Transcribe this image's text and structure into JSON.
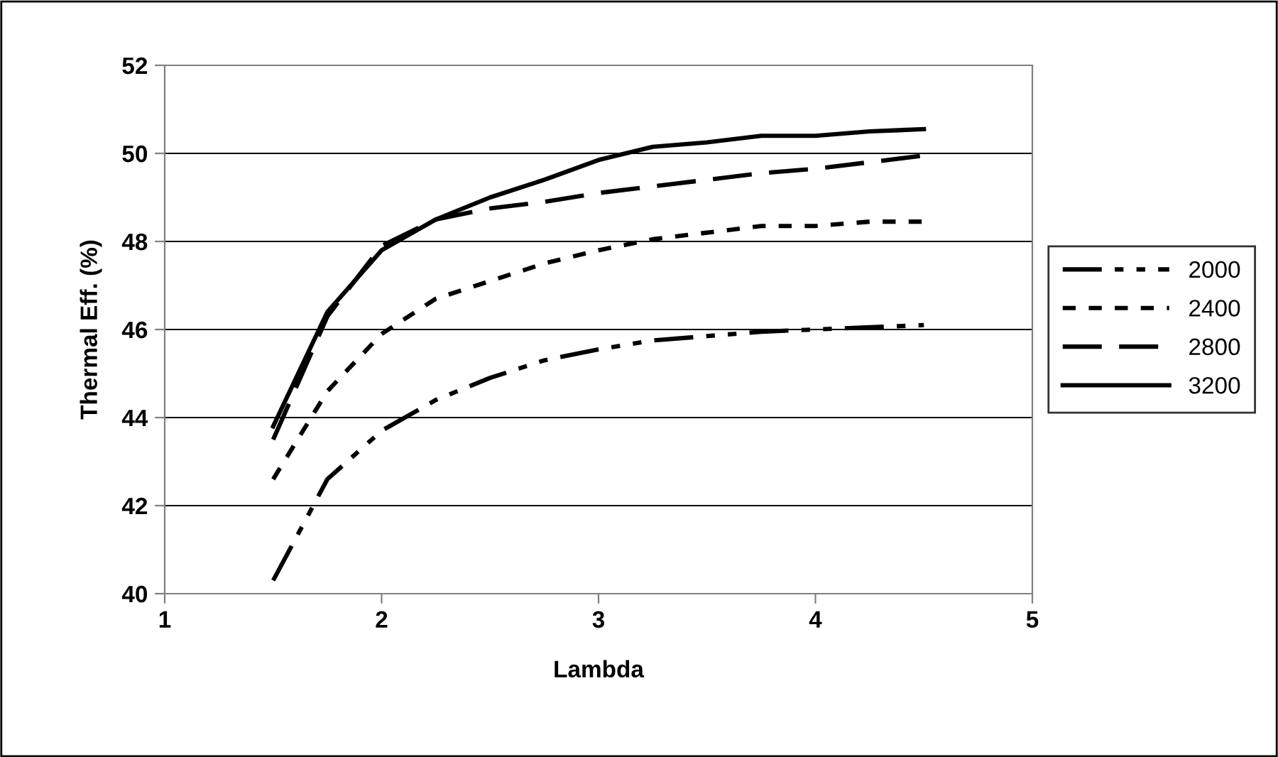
{
  "chart_data": {
    "type": "line",
    "xlabel": "Lambda",
    "ylabel": "Thermal Eff. (%)",
    "x": [
      1.5,
      1.75,
      2,
      2.25,
      2.5,
      2.75,
      3,
      3.25,
      3.5,
      3.75,
      4,
      4.25,
      4.5
    ],
    "xlim": [
      1,
      5
    ],
    "xticks": [
      1,
      2,
      3,
      4,
      5
    ],
    "ylim": [
      40,
      52
    ],
    "yticks": [
      40,
      42,
      44,
      46,
      48,
      50,
      52
    ],
    "grid": "y",
    "legend": "right",
    "marker": "none",
    "series": [
      {
        "name": "2000",
        "color": "#000000",
        "line_style": "dashdotdot",
        "values": [
          40.3,
          42.6,
          43.7,
          44.4,
          44.9,
          45.3,
          45.55,
          45.75,
          45.85,
          45.95,
          46.0,
          46.05,
          46.1
        ]
      },
      {
        "name": "2400",
        "color": "#000000",
        "line_style": "dotted",
        "values": [
          42.6,
          44.6,
          45.9,
          46.7,
          47.1,
          47.5,
          47.8,
          48.05,
          48.2,
          48.35,
          48.35,
          48.45,
          48.45
        ]
      },
      {
        "name": "2800",
        "color": "#000000",
        "line_style": "dashed",
        "values": [
          43.5,
          46.3,
          47.9,
          48.5,
          48.75,
          48.9,
          49.1,
          49.25,
          49.4,
          49.55,
          49.65,
          49.8,
          49.95
        ]
      },
      {
        "name": "3200",
        "color": "#000000",
        "line_style": "solid",
        "values": [
          43.8,
          46.4,
          47.8,
          48.5,
          49.0,
          49.4,
          49.85,
          50.15,
          50.25,
          50.4,
          50.4,
          50.5,
          50.55
        ]
      }
    ]
  }
}
